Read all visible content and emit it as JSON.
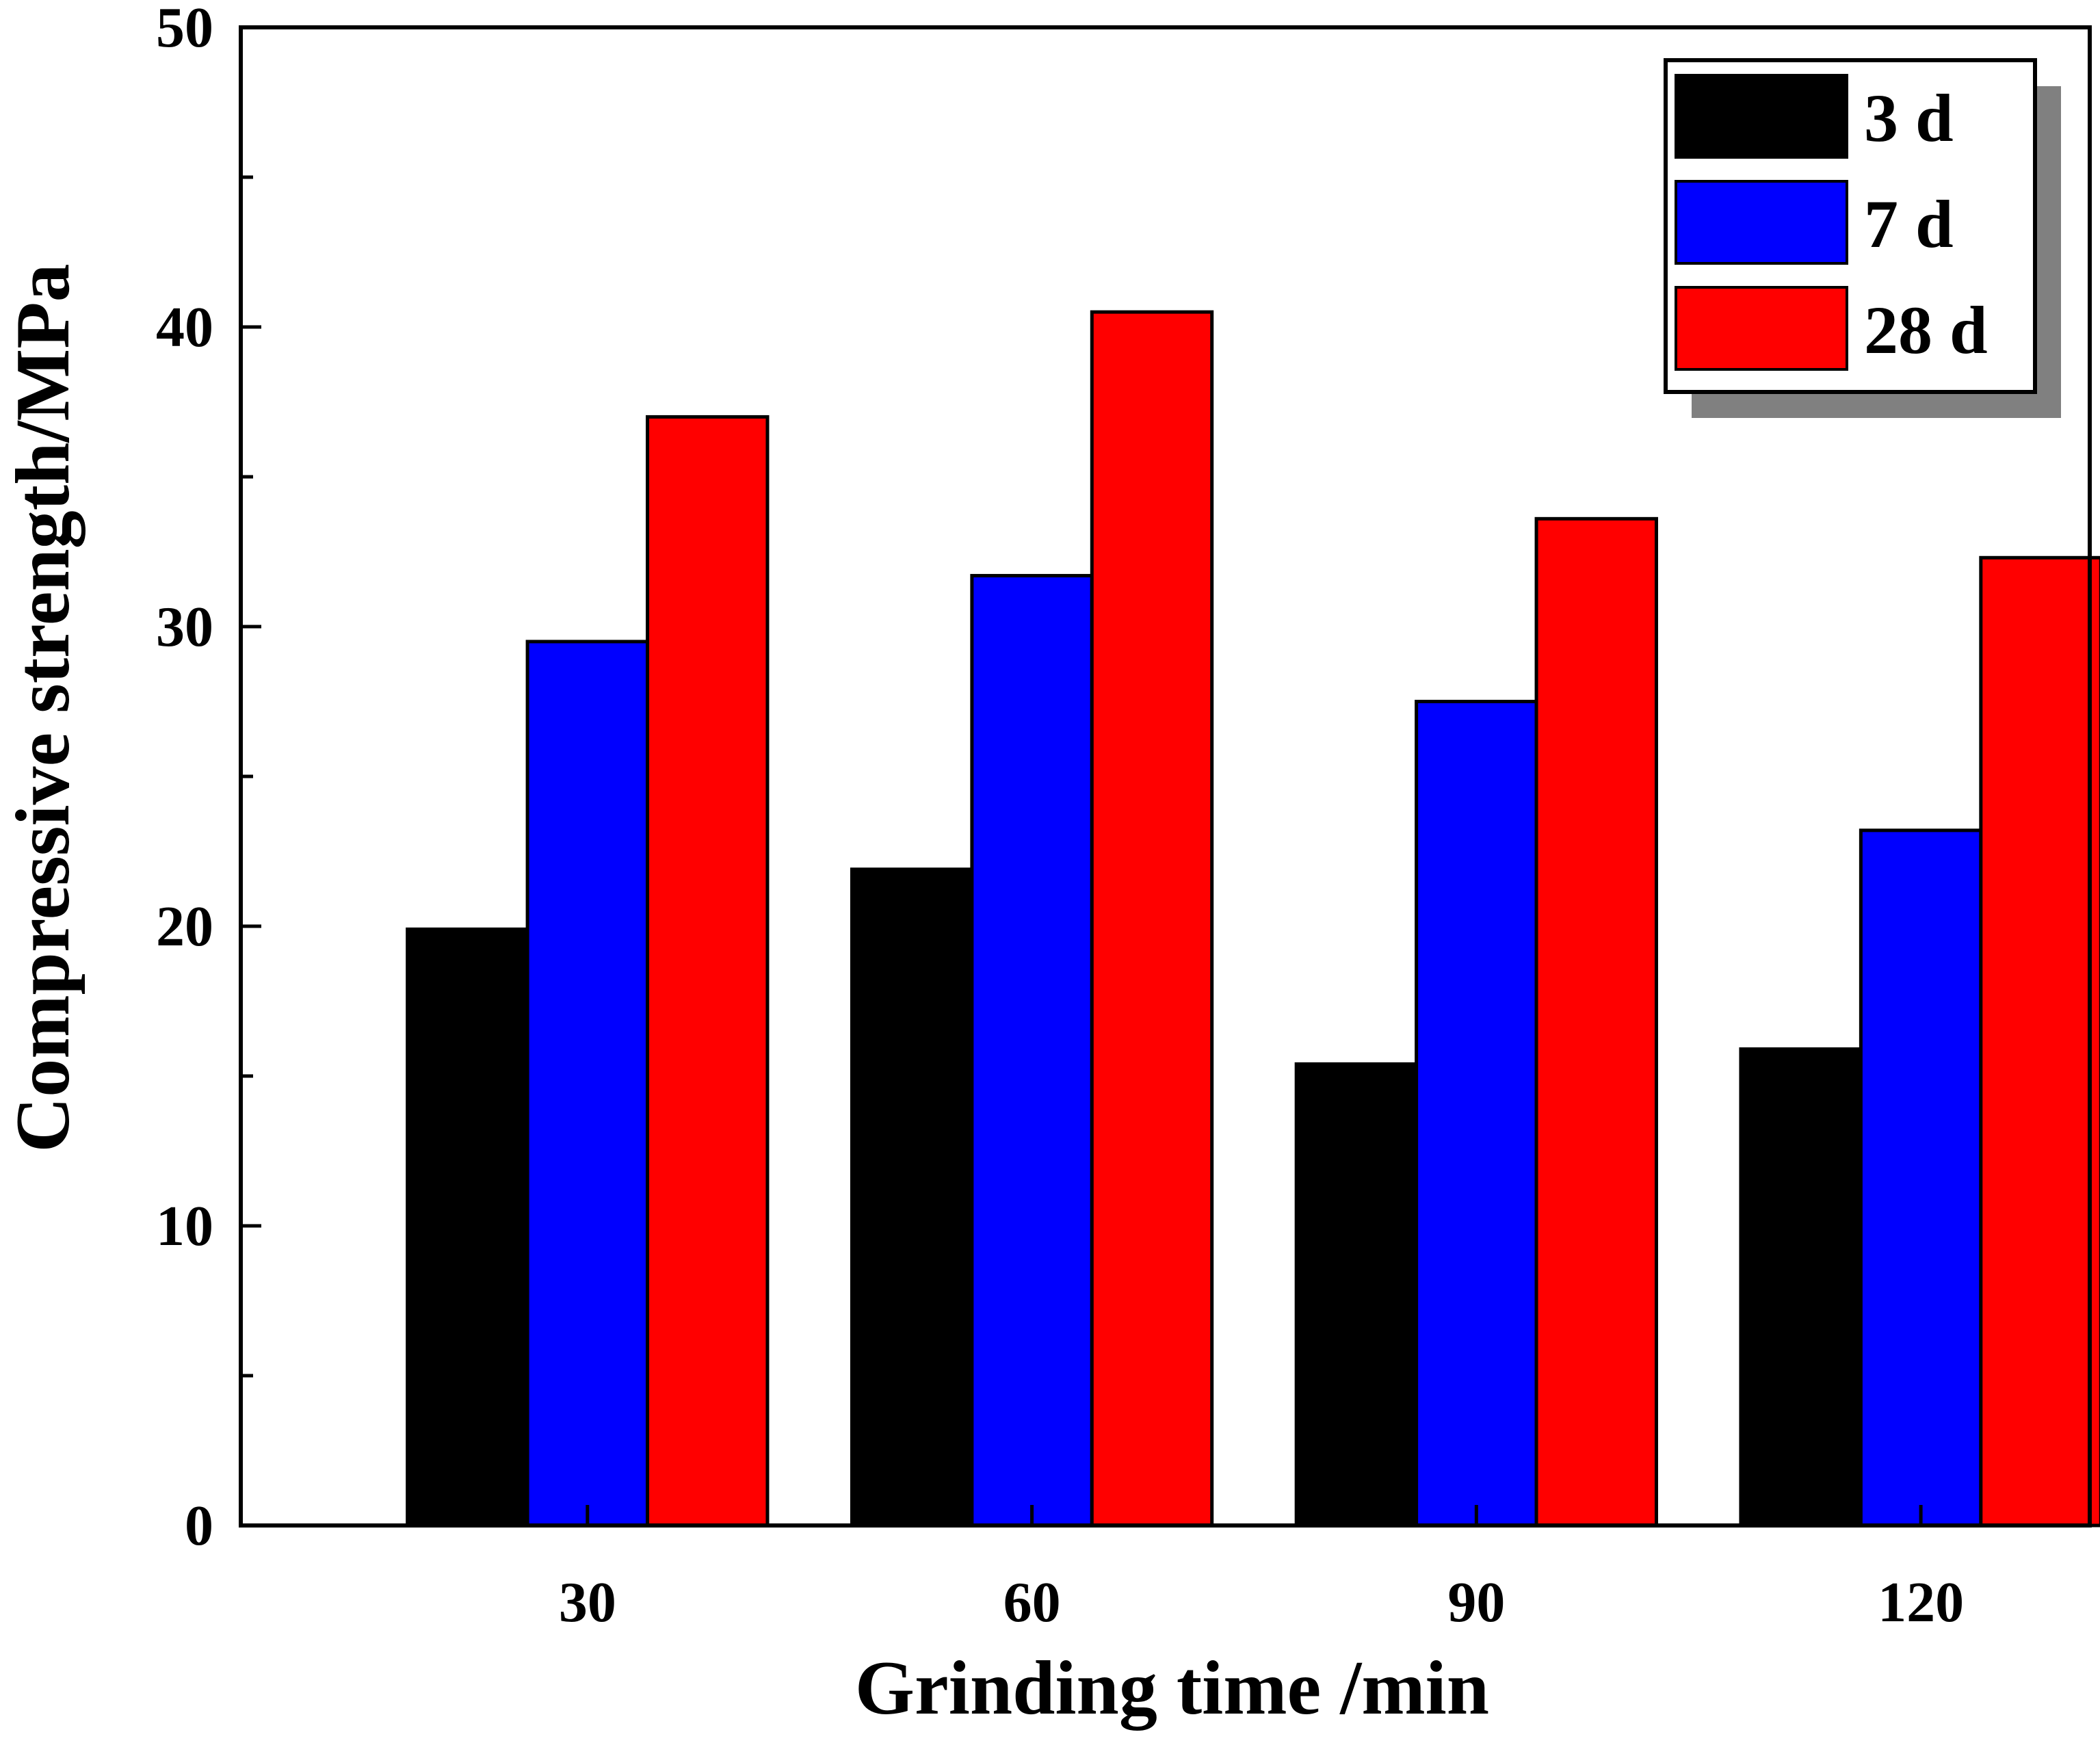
{
  "chart_data": {
    "type": "bar",
    "title": "",
    "xlabel": "Grinding time /min",
    "ylabel": "Compressive strength/MPa",
    "categories": [
      "30",
      "60",
      "90",
      "120"
    ],
    "series": [
      {
        "name": "3 d",
        "color": "#000000",
        "values": [
          19.9,
          21.9,
          15.4,
          15.9
        ]
      },
      {
        "name": "7 d",
        "color": "#0000ff",
        "values": [
          29.5,
          31.7,
          27.5,
          23.2
        ]
      },
      {
        "name": "28 d",
        "color": "#ff0000",
        "values": [
          37.0,
          40.5,
          33.6,
          32.3
        ]
      }
    ],
    "ylim": [
      0,
      50
    ],
    "yticks": [
      "0",
      "10",
      "20",
      "30",
      "40",
      "50"
    ],
    "grid": false,
    "legend_position": "top-right"
  }
}
